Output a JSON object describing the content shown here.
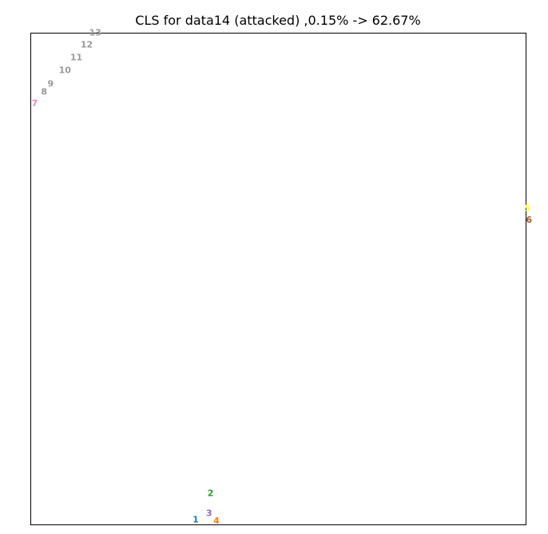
{
  "chart_data": {
    "type": "scatter",
    "title": "CLS for data14 (attacked) ,0.15% -> 62.67%",
    "xlabel": "",
    "ylabel": "",
    "xlim": [
      0,
      1
    ],
    "ylim": [
      0,
      1
    ],
    "grid": false,
    "axis_ticks": false,
    "points": [
      {
        "label": "1",
        "x": 0.333,
        "y": 0.01,
        "color": "#1f77b4"
      },
      {
        "label": "2",
        "x": 0.363,
        "y": 0.063,
        "color": "#2ca02c"
      },
      {
        "label": "3",
        "x": 0.36,
        "y": 0.023,
        "color": "#9467bd"
      },
      {
        "label": "4",
        "x": 0.375,
        "y": 0.007,
        "color": "#ff7f0e"
      },
      {
        "label": "5",
        "x": 1.003,
        "y": 0.643,
        "color": "#ffff33"
      },
      {
        "label": "6",
        "x": 1.006,
        "y": 0.619,
        "color": "#a65628"
      },
      {
        "label": "7",
        "x": 0.008,
        "y": 0.856,
        "color": "#f781bf"
      },
      {
        "label": "8",
        "x": 0.027,
        "y": 0.88,
        "color": "#999999"
      },
      {
        "label": "9",
        "x": 0.04,
        "y": 0.896,
        "color": "#999999"
      },
      {
        "label": "10",
        "x": 0.069,
        "y": 0.924,
        "color": "#999999"
      },
      {
        "label": "11",
        "x": 0.092,
        "y": 0.95,
        "color": "#999999"
      },
      {
        "label": "12",
        "x": 0.113,
        "y": 0.976,
        "color": "#999999"
      },
      {
        "label": "13",
        "x": 0.13,
        "y": 1.0,
        "color": "#999999"
      }
    ]
  }
}
